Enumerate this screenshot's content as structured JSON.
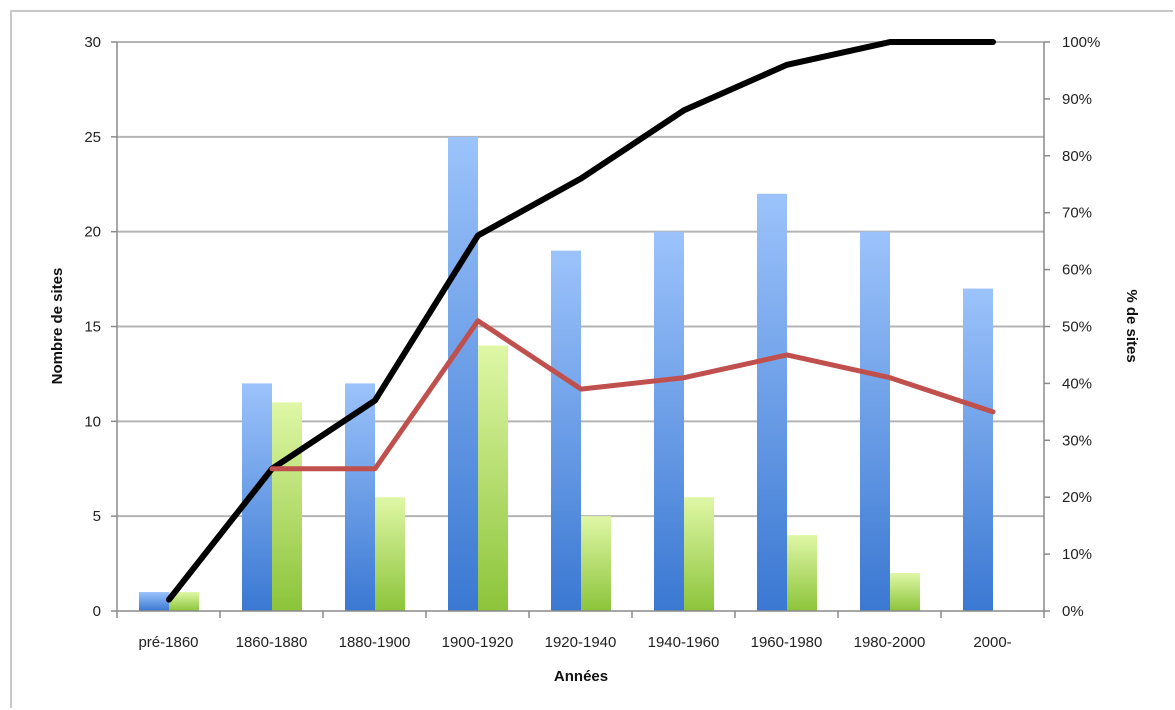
{
  "chart_data": {
    "type": "bar",
    "title": "",
    "xlabel": "Années",
    "ylabel": "Nombre de sites",
    "y2label": "% de sites",
    "ylim": [
      0,
      30
    ],
    "y2lim": [
      0,
      100
    ],
    "yticks": [
      0,
      5,
      10,
      15,
      20,
      25,
      30
    ],
    "y2ticks": [
      "0%",
      "10%",
      "20%",
      "30%",
      "40%",
      "50%",
      "60%",
      "70%",
      "80%",
      "90%",
      "100%"
    ],
    "grid": true,
    "categories": [
      "pré-1860",
      "1860-1880",
      "1880-1900",
      "1900-1920",
      "1920-1940",
      "1940-1960",
      "1960-1980",
      "1980-2000",
      "2000-"
    ],
    "series": [
      {
        "type": "bar",
        "axis": "left",
        "color": "#5b8fdb",
        "values": [
          1,
          12,
          12,
          25,
          19,
          20,
          22,
          20,
          17
        ]
      },
      {
        "type": "bar",
        "axis": "left",
        "color": "#a6d65a",
        "values": [
          1,
          11,
          6,
          14,
          5,
          6,
          4,
          2,
          null
        ]
      },
      {
        "type": "line",
        "axis": "right",
        "color": "#000000",
        "values": [
          2,
          25,
          37,
          66,
          76,
          88,
          96,
          100,
          100
        ]
      },
      {
        "type": "line",
        "axis": "right",
        "color": "#c0504d",
        "values": [
          null,
          25,
          25,
          51,
          39,
          41,
          45,
          41,
          35
        ]
      }
    ]
  }
}
